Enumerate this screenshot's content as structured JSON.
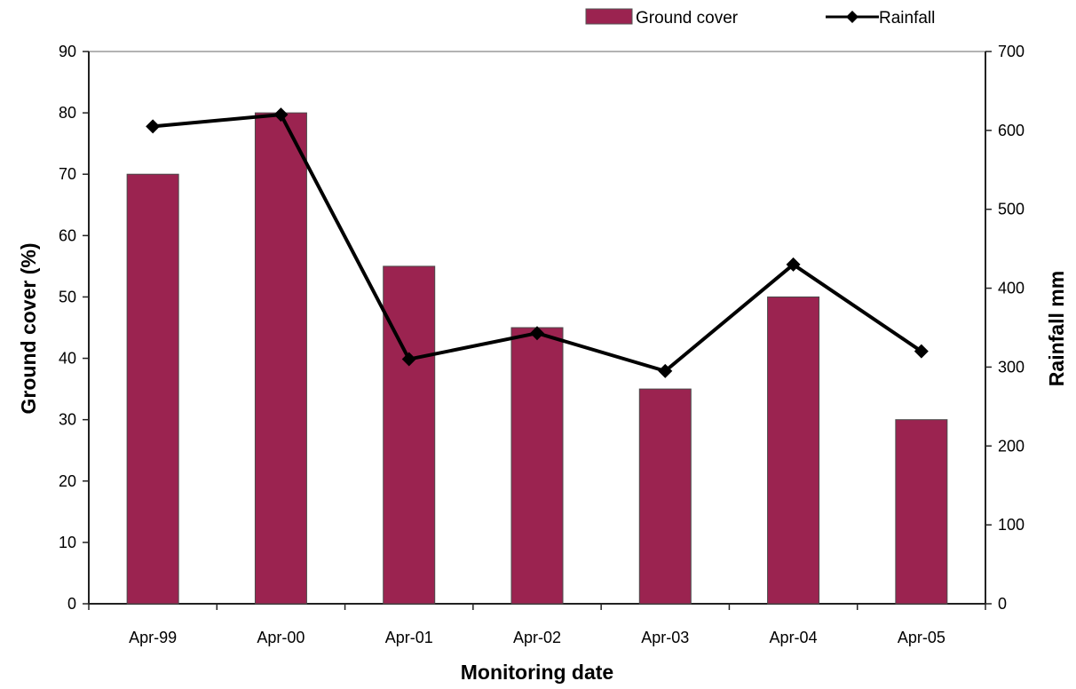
{
  "chart_data": {
    "type": "bar",
    "categories": [
      "Apr-99",
      "Apr-00",
      "Apr-01",
      "Apr-02",
      "Apr-03",
      "Apr-04",
      "Apr-05"
    ],
    "series": [
      {
        "name": "Ground cover",
        "type": "bar",
        "axis": "left",
        "color": "#9b2350",
        "values": [
          70,
          80,
          55,
          45,
          35,
          50,
          30
        ]
      },
      {
        "name": "Rainfall",
        "type": "line",
        "axis": "right",
        "color": "#000000",
        "marker": "diamond",
        "values": [
          605,
          620,
          310,
          343,
          295,
          430,
          320
        ]
      }
    ],
    "xlabel": "Monitoring date",
    "ylabel_left": "Ground cover (%)",
    "ylabel_right": "Rainfall mm",
    "ylim_left": [
      0,
      90
    ],
    "yticks_left": [
      0,
      10,
      20,
      30,
      40,
      50,
      60,
      70,
      80,
      90
    ],
    "ylim_right": [
      0,
      700
    ],
    "yticks_right": [
      0,
      100,
      200,
      300,
      400,
      500,
      600,
      700
    ],
    "grid": false,
    "legend_position": "top-right"
  }
}
